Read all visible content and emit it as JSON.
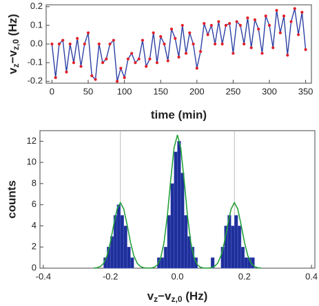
{
  "chart_data": [
    {
      "type": "line",
      "ylabel": [
        {
          "text": "v"
        },
        {
          "text": "z",
          "sub": true
        },
        {
          "text": "−v"
        },
        {
          "text": "z,0",
          "sub": true
        },
        {
          "text": " (Hz)"
        }
      ],
      "xlabel": "time (min)",
      "x": [
        0,
        5,
        10,
        15,
        20,
        25,
        30,
        35,
        40,
        45,
        50,
        55,
        60,
        65,
        70,
        75,
        80,
        85,
        90,
        95,
        100,
        105,
        110,
        115,
        120,
        125,
        130,
        135,
        140,
        145,
        150,
        155,
        160,
        165,
        170,
        175,
        180,
        185,
        190,
        195,
        200,
        205,
        210,
        215,
        220,
        225,
        230,
        235,
        240,
        245,
        250,
        255,
        260,
        265,
        270,
        275,
        280,
        285,
        290,
        295,
        300,
        305,
        310,
        315,
        320,
        325,
        330,
        335,
        340,
        345,
        350
      ],
      "series": [
        {
          "color": "#2b3fa3",
          "marker_color": "#e0202a",
          "values": [
            0.0,
            -0.18,
            0.0,
            0.02,
            -0.15,
            0.0,
            -0.1,
            0.03,
            -0.12,
            0.0,
            0.06,
            -0.17,
            -0.19,
            0.0,
            -0.1,
            -0.08,
            0.0,
            0.02,
            -0.2,
            -0.13,
            -0.18,
            -0.08,
            -0.05,
            -0.1,
            -0.08,
            0.02,
            -0.12,
            -0.08,
            0.06,
            -0.1,
            0.04,
            0.0,
            -0.09,
            0.08,
            0.03,
            -0.07,
            0.1,
            -0.05,
            0.06,
            0.0,
            -0.13,
            -0.04,
            0.11,
            0.05,
            0.1,
            0.0,
            0.12,
            0.0,
            0.1,
            0.11,
            -0.05,
            0.12,
            0.1,
            0.0,
            0.14,
            -0.02,
            0.13,
            0.08,
            -0.05,
            0.15,
            0.1,
            -0.02,
            0.18,
            0.06,
            0.15,
            -0.06,
            0.12,
            0.19,
            0.05,
            0.17,
            -0.03
          ]
        }
      ],
      "xlim": [
        -8,
        358
      ],
      "xticks": [
        0,
        50,
        100,
        150,
        200,
        250,
        300,
        350
      ],
      "ylim": [
        -0.21,
        0.21
      ],
      "yticks": [
        -0.2,
        -0.1,
        {
          "value": 0,
          "label": "0.0"
        },
        0.1,
        0.2
      ]
    },
    {
      "type": "histogram",
      "ylabel": "counts",
      "xlabel": [
        {
          "text": "v"
        },
        {
          "text": "z",
          "sub": true
        },
        {
          "text": "−v"
        },
        {
          "text": "z,0",
          "sub": true
        },
        {
          "text": " (Hz)"
        }
      ],
      "bins": [
        -0.25,
        -0.24,
        -0.23,
        -0.22,
        -0.21,
        -0.2,
        -0.19,
        -0.18,
        -0.17,
        -0.16,
        -0.15,
        -0.14,
        -0.13,
        -0.12,
        -0.11,
        -0.1,
        -0.09,
        -0.08,
        -0.07,
        -0.06,
        -0.05,
        -0.04,
        -0.03,
        -0.02,
        -0.01,
        0,
        0.01,
        0.02,
        0.03,
        0.04,
        0.05,
        0.06,
        0.07,
        0.08,
        0.09,
        0.1,
        0.11,
        0.12,
        0.13,
        0.14,
        0.15,
        0.16,
        0.17,
        0.18,
        0.19,
        0.2,
        0.21,
        0.22,
        0.23,
        0.24,
        0.25
      ],
      "values": [
        0,
        0,
        0,
        1,
        2,
        3,
        5,
        6,
        5,
        4,
        2,
        1,
        0,
        0,
        0,
        0,
        0,
        0,
        0,
        1,
        1,
        2,
        5,
        8,
        11,
        12,
        9,
        5,
        3,
        2,
        1,
        0,
        0,
        0,
        0,
        1,
        0,
        0,
        2,
        4,
        5,
        4,
        5,
        4,
        2,
        1,
        1,
        1,
        0,
        0
      ],
      "color": "#1f2f9a",
      "fit": {
        "color": "#23a03a",
        "x": [
          -0.25,
          -0.24,
          -0.23,
          -0.22,
          -0.21,
          -0.2,
          -0.19,
          -0.18,
          -0.17,
          -0.16,
          -0.15,
          -0.14,
          -0.13,
          -0.12,
          -0.11,
          -0.1,
          -0.09,
          -0.08,
          -0.07,
          -0.06,
          -0.05,
          -0.04,
          -0.03,
          -0.02,
          -0.01,
          0,
          0.01,
          0.02,
          0.03,
          0.04,
          0.05,
          0.06,
          0.07,
          0.08,
          0.09,
          0.1,
          0.11,
          0.12,
          0.13,
          0.14,
          0.15,
          0.16,
          0.17,
          0.18,
          0.19,
          0.2,
          0.21,
          0.22,
          0.23,
          0.24,
          0.25
        ],
        "values": [
          0.01,
          0.04,
          0.15,
          0.47,
          1.18,
          2.45,
          4.1,
          5.59,
          6.2,
          5.59,
          4.1,
          2.45,
          1.18,
          0.47,
          0.15,
          0.04,
          0.01,
          0.01,
          0.08,
          0.3,
          0.96,
          2.41,
          4.98,
          8.34,
          11.37,
          12.6,
          11.37,
          8.34,
          4.98,
          2.41,
          0.96,
          0.3,
          0.08,
          0.01,
          0.01,
          0.04,
          0.15,
          0.47,
          1.18,
          2.45,
          4.1,
          5.59,
          6.2,
          5.59,
          4.1,
          2.45,
          1.18,
          0.47,
          0.15,
          0.04,
          0.01
        ]
      },
      "vlines": {
        "color": "#aaaaaa",
        "values": [
          -0.17,
          0.17
        ]
      },
      "xlim": [
        -0.41,
        0.41
      ],
      "xticks": [
        -0.4,
        -0.2,
        {
          "value": 0,
          "label": "0.0"
        },
        0.2,
        0.4
      ],
      "ylim": [
        0,
        13
      ],
      "yticks": [
        0,
        2,
        4,
        6,
        8,
        10,
        12
      ]
    }
  ]
}
